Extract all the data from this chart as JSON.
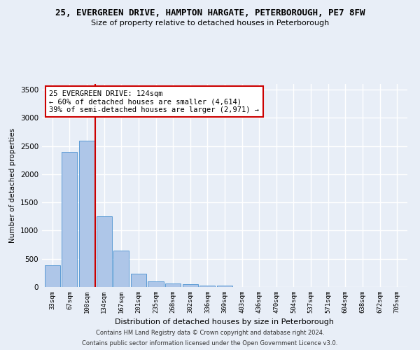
{
  "title_line1": "25, EVERGREEN DRIVE, HAMPTON HARGATE, PETERBOROUGH, PE7 8FW",
  "title_line2": "Size of property relative to detached houses in Peterborough",
  "xlabel": "Distribution of detached houses by size in Peterborough",
  "ylabel": "Number of detached properties",
  "categories": [
    "33sqm",
    "67sqm",
    "100sqm",
    "134sqm",
    "167sqm",
    "201sqm",
    "235sqm",
    "268sqm",
    "302sqm",
    "336sqm",
    "369sqm",
    "403sqm",
    "436sqm",
    "470sqm",
    "504sqm",
    "537sqm",
    "571sqm",
    "604sqm",
    "638sqm",
    "672sqm",
    "705sqm"
  ],
  "values": [
    390,
    2400,
    2600,
    1250,
    640,
    240,
    105,
    60,
    45,
    30,
    25,
    5,
    0,
    0,
    0,
    0,
    0,
    0,
    0,
    0,
    0
  ],
  "bar_color": "#aec6e8",
  "bar_edge_color": "#5b9bd5",
  "vline_color": "#cc0000",
  "annotation_text": "25 EVERGREEN DRIVE: 124sqm\n← 60% of detached houses are smaller (4,614)\n39% of semi-detached houses are larger (2,971) →",
  "annotation_box_color": "#ffffff",
  "annotation_box_edge": "#cc0000",
  "ylim": [
    0,
    3600
  ],
  "yticks": [
    0,
    500,
    1000,
    1500,
    2000,
    2500,
    3000,
    3500
  ],
  "background_color": "#e8eef7",
  "grid_color": "#ffffff",
  "footer_line1": "Contains HM Land Registry data © Crown copyright and database right 2024.",
  "footer_line2": "Contains public sector information licensed under the Open Government Licence v3.0."
}
